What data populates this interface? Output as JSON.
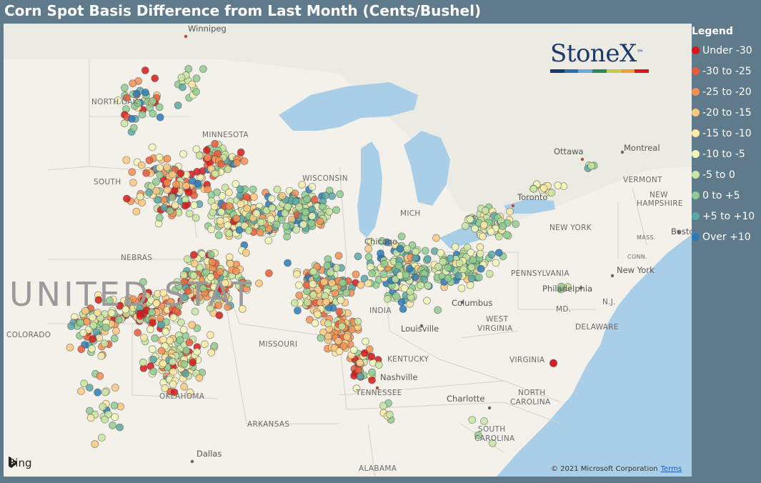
{
  "title": "Corn Spot Basis Difference from Last Month (Cents/Bushel)",
  "legend": {
    "title": "Legend",
    "items": [
      {
        "label": "Under -30",
        "color": "#d7191c"
      },
      {
        "label": "-30 to -25",
        "color": "#e85b3a"
      },
      {
        "label": "-25 to -20",
        "color": "#f59053"
      },
      {
        "label": "-20 to -15",
        "color": "#fdc980"
      },
      {
        "label": "-15 to -10",
        "color": "#fde9a4"
      },
      {
        "label": "-10 to -5",
        "color": "#f1f7b8"
      },
      {
        "label": "-5 to 0",
        "color": "#c7e6a1"
      },
      {
        "label": "0 to +5",
        "color": "#8fcc91"
      },
      {
        "label": "+5 to +10",
        "color": "#5aa7a7"
      },
      {
        "label": "Over +10",
        "color": "#2b7bb9"
      }
    ]
  },
  "logo": {
    "text": "StoneX",
    "tm": "™",
    "bar_colors": [
      "#1b3a6b",
      "#2a6fb0",
      "#6fa8d6",
      "#2e8b57",
      "#c8c84a",
      "#f0a030",
      "#d7191c"
    ]
  },
  "attribution": {
    "bing": "Bing",
    "copyright": "© 2021 Microsoft Corporation",
    "terms": "Terms"
  },
  "map_labels": {
    "winnipeg": "Winnipeg",
    "north_dakota": "NORTH DAK",
    "minnesota": "MINNESOTA",
    "south_dakota": "SOUTH",
    "wisconsin": "WISCONSIN",
    "michigan": "MICH",
    "ottawa": "Ottawa",
    "montreal": "Montreal",
    "vermont": "VERMONT",
    "new_hampshire_1": "NEW",
    "new_hampshire_2": "HAMPSHIRE",
    "toronto": "Toronto",
    "new_york_state": "NEW YORK",
    "boston": "Bosto",
    "mass": "MASS.",
    "conn": "CONN.",
    "new_york_city": "New York",
    "nebraska": "NEBRAS",
    "chicago": "Chicago",
    "pennsylvania": "PENNSYLVANIA",
    "philadelphia": "Philadelphia",
    "nj": "N.J.",
    "md": "MD.",
    "delaware": "DELAWARE",
    "country": "UNITED STAT",
    "columbus": "Columbus",
    "west_virginia_1": "WEST",
    "west_virginia_2": "VIRGINIA",
    "indiana": "INDIA",
    "louisville": "Louisville",
    "colorado": "COLORADO",
    "missouri": "MISSOURI",
    "kentucky": "KENTUCKY",
    "virginia": "VIRGINIA",
    "nashville": "Nashville",
    "tennessee": "TENNESSEE",
    "oklahoma": "OKLAHOMA",
    "charlotte": "Charlotte",
    "north_carolina_1": "NORTH",
    "north_carolina_2": "CAROLINA",
    "arkansas": "ARKANSAS",
    "south_carolina_1": "SOUTH",
    "south_carolina_2": "CAROLINA",
    "dallas": "Dallas",
    "alabama": "ALABAMA"
  }
}
